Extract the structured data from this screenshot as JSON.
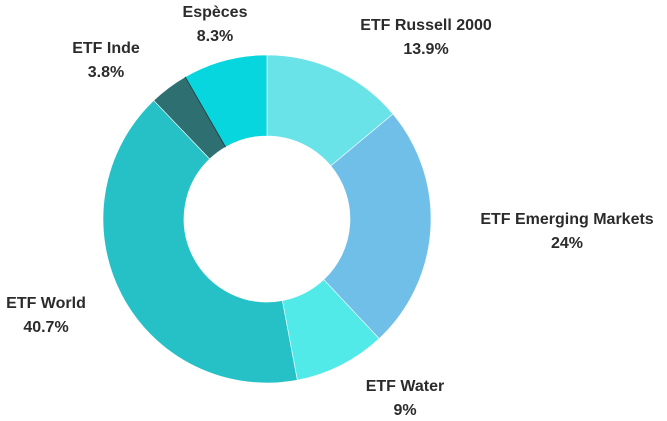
{
  "chart_data": {
    "type": "pie",
    "donut": true,
    "title": "",
    "slices": [
      {
        "label": "ETF Russell 2000",
        "pct_text": "13.9%",
        "value": 13.9,
        "color": "#6ae3e8"
      },
      {
        "label": "ETF Emerging Markets",
        "pct_text": "24%",
        "value": 24.0,
        "color": "#6fbfe8"
      },
      {
        "label": "ETF Water",
        "pct_text": "9%",
        "value": 9.0,
        "color": "#52eae8"
      },
      {
        "label": "ETF World",
        "pct_text": "40.7%",
        "value": 40.7,
        "color": "#26c1c6"
      },
      {
        "label": "ETF Inde",
        "pct_text": "3.8%",
        "value": 3.8,
        "color": "#2e6f72"
      },
      {
        "label": "Espèces",
        "pct_text": "8.3%",
        "value": 8.3,
        "color": "#08d6de"
      }
    ]
  }
}
